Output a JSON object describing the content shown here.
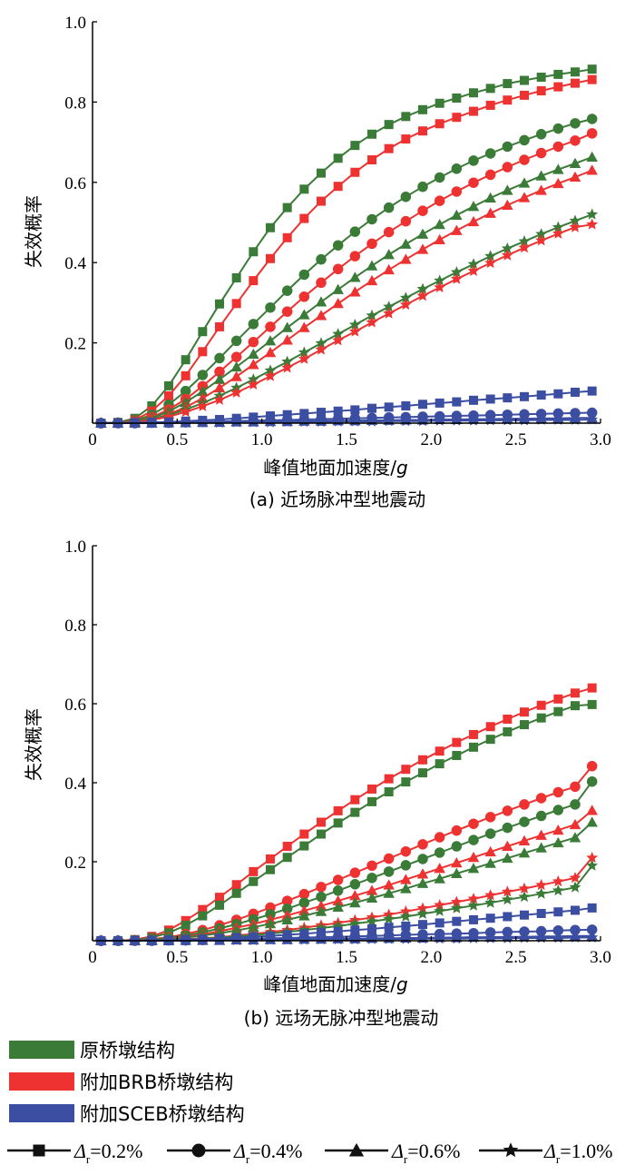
{
  "colors": {
    "green": "#3a7b37",
    "red": "#ee3131",
    "blue": "#3b4ea1",
    "black": "#111111"
  },
  "legend": {
    "structures": [
      {
        "label": "原桥墩结构",
        "color": "#3a7b37"
      },
      {
        "label": "附加BRB桥墩结构",
        "color": "#ee3131"
      },
      {
        "label": "附加SCEB桥墩结构",
        "color": "#3b4ea1"
      }
    ],
    "markers": [
      {
        "prefix": "Δ",
        "sub": "r",
        "value": "=0.2%",
        "marker": "square"
      },
      {
        "prefix": "Δ",
        "sub": "r",
        "value": "=0.4%",
        "marker": "circle"
      },
      {
        "prefix": "Δ",
        "sub": "r",
        "value": "=0.6%",
        "marker": "triangle"
      },
      {
        "prefix": "Δ",
        "sub": "r",
        "value": "=1.0%",
        "marker": "star"
      }
    ]
  },
  "chart_data": [
    {
      "type": "line",
      "caption": "(a) 近场脉冲型地震动",
      "xlabel_main": "峰值地面加速度/",
      "xlabel_unit": "g",
      "ylabel": "失效概率",
      "xlim": [
        0,
        3.0
      ],
      "ylim": [
        0,
        1.0
      ],
      "xticks": [
        "0",
        "0.5",
        "1.0",
        "1.5",
        "2.0",
        "2.5",
        "3.0"
      ],
      "yticks": [
        "0.2",
        "0.4",
        "0.6",
        "0.8",
        "1.0"
      ],
      "x": [
        0.05,
        0.15,
        0.25,
        0.35,
        0.45,
        0.55,
        0.65,
        0.75,
        0.85,
        0.95,
        1.05,
        1.15,
        1.25,
        1.35,
        1.45,
        1.55,
        1.65,
        1.75,
        1.85,
        1.95,
        2.05,
        2.15,
        2.25,
        2.35,
        2.45,
        2.55,
        2.65,
        2.75,
        2.85,
        2.95
      ],
      "series": [
        {
          "structure": 0,
          "marker": "square",
          "values": [
            0.0,
            0.002,
            0.012,
            0.043,
            0.093,
            0.158,
            0.228,
            0.297,
            0.362,
            0.427,
            0.487,
            0.537,
            0.583,
            0.623,
            0.66,
            0.692,
            0.72,
            0.744,
            0.764,
            0.781,
            0.797,
            0.81,
            0.823,
            0.834,
            0.846,
            0.854,
            0.862,
            0.869,
            0.875,
            0.882
          ]
        },
        {
          "structure": 1,
          "marker": "square",
          "values": [
            0.0,
            0.001,
            0.008,
            0.03,
            0.068,
            0.118,
            0.178,
            0.24,
            0.298,
            0.355,
            0.41,
            0.462,
            0.51,
            0.553,
            0.59,
            0.625,
            0.656,
            0.684,
            0.708,
            0.728,
            0.746,
            0.762,
            0.777,
            0.792,
            0.805,
            0.817,
            0.828,
            0.838,
            0.847,
            0.856
          ]
        },
        {
          "structure": 0,
          "marker": "circle",
          "values": [
            0.0,
            0.001,
            0.006,
            0.021,
            0.046,
            0.08,
            0.12,
            0.162,
            0.205,
            0.247,
            0.288,
            0.33,
            0.37,
            0.408,
            0.443,
            0.477,
            0.508,
            0.537,
            0.564,
            0.589,
            0.612,
            0.634,
            0.654,
            0.672,
            0.689,
            0.705,
            0.72,
            0.734,
            0.747,
            0.758
          ]
        },
        {
          "structure": 1,
          "marker": "circle",
          "values": [
            0.0,
            0.0,
            0.004,
            0.015,
            0.034,
            0.06,
            0.092,
            0.128,
            0.165,
            0.202,
            0.24,
            0.278,
            0.315,
            0.35,
            0.384,
            0.416,
            0.447,
            0.476,
            0.503,
            0.529,
            0.554,
            0.577,
            0.599,
            0.619,
            0.638,
            0.656,
            0.673,
            0.689,
            0.704,
            0.722
          ]
        },
        {
          "structure": 0,
          "marker": "triangle",
          "values": [
            0.0,
            0.0,
            0.004,
            0.013,
            0.029,
            0.052,
            0.079,
            0.109,
            0.14,
            0.172,
            0.205,
            0.238,
            0.27,
            0.302,
            0.333,
            0.363,
            0.392,
            0.42,
            0.446,
            0.471,
            0.495,
            0.518,
            0.54,
            0.561,
            0.58,
            0.598,
            0.616,
            0.632,
            0.647,
            0.663
          ]
        },
        {
          "structure": 1,
          "marker": "triangle",
          "values": [
            0.0,
            0.0,
            0.003,
            0.01,
            0.022,
            0.04,
            0.062,
            0.088,
            0.116,
            0.146,
            0.176,
            0.207,
            0.238,
            0.268,
            0.298,
            0.327,
            0.355,
            0.382,
            0.408,
            0.433,
            0.457,
            0.48,
            0.502,
            0.523,
            0.543,
            0.562,
            0.58,
            0.597,
            0.613,
            0.63
          ]
        },
        {
          "structure": 0,
          "marker": "star",
          "values": [
            0.0,
            0.0,
            0.003,
            0.01,
            0.02,
            0.034,
            0.05,
            0.068,
            0.088,
            0.109,
            0.131,
            0.153,
            0.176,
            0.199,
            0.222,
            0.245,
            0.268,
            0.29,
            0.312,
            0.334,
            0.355,
            0.376,
            0.396,
            0.416,
            0.435,
            0.453,
            0.471,
            0.488,
            0.504,
            0.52
          ]
        },
        {
          "structure": 1,
          "marker": "star",
          "values": [
            0.0,
            0.0,
            0.002,
            0.008,
            0.016,
            0.028,
            0.042,
            0.058,
            0.076,
            0.096,
            0.117,
            0.138,
            0.16,
            0.183,
            0.206,
            0.228,
            0.251,
            0.273,
            0.295,
            0.317,
            0.338,
            0.359,
            0.379,
            0.399,
            0.418,
            0.437,
            0.455,
            0.472,
            0.488,
            0.495
          ]
        },
        {
          "structure": 2,
          "marker": "square",
          "values": [
            0.0,
            0.0,
            0.001,
            0.002,
            0.003,
            0.005,
            0.007,
            0.009,
            0.012,
            0.015,
            0.018,
            0.021,
            0.024,
            0.027,
            0.03,
            0.033,
            0.037,
            0.04,
            0.043,
            0.047,
            0.05,
            0.053,
            0.057,
            0.06,
            0.063,
            0.066,
            0.07,
            0.073,
            0.077,
            0.08
          ]
        },
        {
          "structure": 2,
          "marker": "circle",
          "values": [
            0.0,
            0.0,
            0.0,
            0.001,
            0.001,
            0.002,
            0.003,
            0.004,
            0.005,
            0.006,
            0.007,
            0.008,
            0.009,
            0.01,
            0.011,
            0.012,
            0.013,
            0.014,
            0.015,
            0.016,
            0.017,
            0.018,
            0.019,
            0.02,
            0.021,
            0.022,
            0.023,
            0.024,
            0.025,
            0.026
          ]
        },
        {
          "structure": 2,
          "marker": "triangle",
          "values": [
            0.0,
            0.0,
            0.0,
            0.0,
            0.001,
            0.001,
            0.002,
            0.002,
            0.003,
            0.003,
            0.004,
            0.004,
            0.005,
            0.005,
            0.006,
            0.006,
            0.007,
            0.007,
            0.008,
            0.008,
            0.009,
            0.009,
            0.01,
            0.01,
            0.011,
            0.011,
            0.012,
            0.012,
            0.013,
            0.013
          ]
        },
        {
          "structure": 2,
          "marker": "star",
          "values": [
            0.0,
            0.0,
            0.0,
            0.0,
            0.0,
            0.001,
            0.001,
            0.001,
            0.002,
            0.002,
            0.002,
            0.003,
            0.003,
            0.003,
            0.004,
            0.004,
            0.004,
            0.005,
            0.005,
            0.005,
            0.006,
            0.006,
            0.006,
            0.007,
            0.007,
            0.007,
            0.008,
            0.008,
            0.008,
            0.009
          ]
        }
      ]
    },
    {
      "type": "line",
      "caption": "(b) 远场无脉冲型地震动",
      "xlabel_main": "峰值地面加速度/",
      "xlabel_unit": "g",
      "ylabel": "失效概率",
      "xlim": [
        0,
        3.0
      ],
      "ylim": [
        0,
        1.0
      ],
      "xticks": [
        "0",
        "0.5",
        "1.0",
        "1.5",
        "2.0",
        "2.5",
        "3.0"
      ],
      "yticks": [
        "0.2",
        "0.4",
        "0.6",
        "0.8",
        "1.0"
      ],
      "x": [
        0.05,
        0.15,
        0.25,
        0.35,
        0.45,
        0.55,
        0.65,
        0.75,
        0.85,
        0.95,
        1.05,
        1.15,
        1.25,
        1.35,
        1.45,
        1.55,
        1.65,
        1.75,
        1.85,
        1.95,
        2.05,
        2.15,
        2.25,
        2.35,
        2.45,
        2.55,
        2.65,
        2.75,
        2.85,
        2.95
      ],
      "series": [
        {
          "structure": 1,
          "marker": "square",
          "values": [
            0.0,
            0.0,
            0.003,
            0.011,
            0.027,
            0.051,
            0.079,
            0.11,
            0.142,
            0.175,
            0.207,
            0.239,
            0.27,
            0.3,
            0.329,
            0.357,
            0.384,
            0.41,
            0.434,
            0.458,
            0.48,
            0.502,
            0.522,
            0.542,
            0.561,
            0.579,
            0.596,
            0.612,
            0.627,
            0.64
          ]
        },
        {
          "structure": 0,
          "marker": "square",
          "values": [
            0.0,
            0.0,
            0.002,
            0.008,
            0.02,
            0.039,
            0.063,
            0.09,
            0.12,
            0.15,
            0.18,
            0.211,
            0.24,
            0.27,
            0.298,
            0.325,
            0.352,
            0.377,
            0.402,
            0.425,
            0.448,
            0.469,
            0.49,
            0.51,
            0.529,
            0.547,
            0.564,
            0.58,
            0.595,
            0.598
          ]
        },
        {
          "structure": 1,
          "marker": "circle",
          "values": [
            0.0,
            0.0,
            0.001,
            0.004,
            0.009,
            0.017,
            0.027,
            0.039,
            0.053,
            0.068,
            0.084,
            0.101,
            0.118,
            0.136,
            0.154,
            0.172,
            0.19,
            0.208,
            0.226,
            0.244,
            0.262,
            0.279,
            0.296,
            0.313,
            0.329,
            0.345,
            0.361,
            0.376,
            0.39,
            0.442
          ]
        },
        {
          "structure": 0,
          "marker": "circle",
          "values": [
            0.0,
            0.0,
            0.001,
            0.003,
            0.007,
            0.013,
            0.021,
            0.031,
            0.042,
            0.054,
            0.067,
            0.081,
            0.096,
            0.111,
            0.127,
            0.143,
            0.159,
            0.175,
            0.191,
            0.207,
            0.223,
            0.239,
            0.255,
            0.271,
            0.286,
            0.301,
            0.316,
            0.331,
            0.345,
            0.403
          ]
        },
        {
          "structure": 1,
          "marker": "triangle",
          "values": [
            0.0,
            0.0,
            0.001,
            0.002,
            0.005,
            0.01,
            0.016,
            0.024,
            0.033,
            0.042,
            0.053,
            0.064,
            0.076,
            0.088,
            0.101,
            0.114,
            0.127,
            0.141,
            0.155,
            0.169,
            0.183,
            0.197,
            0.211,
            0.225,
            0.239,
            0.253,
            0.267,
            0.28,
            0.294,
            0.33
          ]
        },
        {
          "structure": 0,
          "marker": "triangle",
          "values": [
            0.0,
            0.0,
            0.0,
            0.002,
            0.004,
            0.008,
            0.013,
            0.019,
            0.026,
            0.034,
            0.043,
            0.053,
            0.063,
            0.074,
            0.085,
            0.096,
            0.108,
            0.12,
            0.132,
            0.145,
            0.157,
            0.17,
            0.183,
            0.196,
            0.209,
            0.222,
            0.235,
            0.248,
            0.261,
            0.3
          ]
        },
        {
          "structure": 1,
          "marker": "star",
          "values": [
            0.0,
            0.0,
            0.0,
            0.001,
            0.002,
            0.004,
            0.006,
            0.009,
            0.013,
            0.017,
            0.022,
            0.027,
            0.033,
            0.039,
            0.045,
            0.052,
            0.059,
            0.066,
            0.074,
            0.082,
            0.09,
            0.098,
            0.106,
            0.115,
            0.124,
            0.132,
            0.141,
            0.15,
            0.159,
            0.21
          ]
        },
        {
          "structure": 0,
          "marker": "star",
          "values": [
            0.0,
            0.0,
            0.0,
            0.001,
            0.002,
            0.003,
            0.005,
            0.008,
            0.011,
            0.014,
            0.018,
            0.022,
            0.027,
            0.032,
            0.037,
            0.043,
            0.049,
            0.055,
            0.061,
            0.068,
            0.075,
            0.082,
            0.089,
            0.096,
            0.104,
            0.111,
            0.119,
            0.127,
            0.135,
            0.19
          ]
        },
        {
          "structure": 2,
          "marker": "square",
          "values": [
            0.0,
            0.0,
            0.0,
            0.001,
            0.002,
            0.003,
            0.004,
            0.006,
            0.008,
            0.01,
            0.012,
            0.015,
            0.018,
            0.021,
            0.024,
            0.027,
            0.03,
            0.034,
            0.037,
            0.041,
            0.045,
            0.049,
            0.053,
            0.057,
            0.061,
            0.065,
            0.069,
            0.073,
            0.077,
            0.083
          ]
        },
        {
          "structure": 2,
          "marker": "circle",
          "values": [
            0.0,
            0.0,
            0.0,
            0.0,
            0.001,
            0.001,
            0.002,
            0.003,
            0.004,
            0.005,
            0.006,
            0.007,
            0.008,
            0.009,
            0.01,
            0.011,
            0.012,
            0.013,
            0.015,
            0.016,
            0.017,
            0.018,
            0.019,
            0.021,
            0.022,
            0.023,
            0.024,
            0.026,
            0.027,
            0.028
          ]
        },
        {
          "structure": 2,
          "marker": "triangle",
          "values": [
            0.0,
            0.0,
            0.0,
            0.0,
            0.0,
            0.001,
            0.001,
            0.001,
            0.002,
            0.002,
            0.003,
            0.003,
            0.004,
            0.004,
            0.005,
            0.005,
            0.006,
            0.006,
            0.007,
            0.007,
            0.008,
            0.008,
            0.009,
            0.009,
            0.01,
            0.01,
            0.011,
            0.011,
            0.012,
            0.012
          ]
        },
        {
          "structure": 2,
          "marker": "star",
          "values": [
            0.0,
            0.0,
            0.0,
            0.0,
            0.0,
            0.0,
            0.001,
            0.001,
            0.001,
            0.001,
            0.002,
            0.002,
            0.002,
            0.003,
            0.003,
            0.003,
            0.004,
            0.004,
            0.004,
            0.005,
            0.005,
            0.005,
            0.006,
            0.006,
            0.006,
            0.007,
            0.007,
            0.007,
            0.008,
            0.008
          ]
        }
      ]
    }
  ]
}
